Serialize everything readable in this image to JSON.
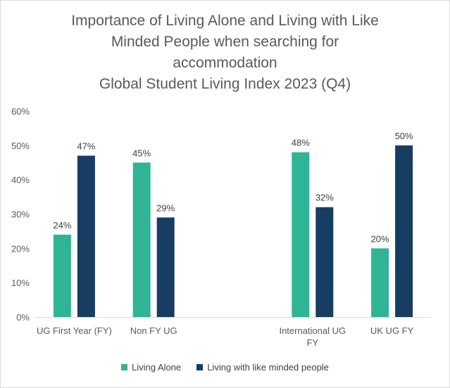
{
  "chart_data": {
    "type": "bar",
    "title_lines": [
      "Importance of Living Alone and Living with Like",
      "Minded People when searching for",
      "accommodation",
      "Global Student Living Index 2023 (Q4)"
    ],
    "categories": [
      {
        "label_lines": [
          "UG First Year (FY)"
        ],
        "slot": 0
      },
      {
        "label_lines": [
          "Non FY UG"
        ],
        "slot": 1
      },
      {
        "label_lines": [
          "International UG",
          "FY"
        ],
        "slot": 3
      },
      {
        "label_lines": [
          "UK UG FY"
        ],
        "slot": 4
      }
    ],
    "series": [
      {
        "name": "Living Alone",
        "color": "#2fb596",
        "values": [
          24,
          45,
          48,
          20
        ]
      },
      {
        "name": "Living with like minded people",
        "color": "#173d63",
        "values": [
          47,
          29,
          32,
          50
        ]
      }
    ],
    "data_labels": [
      [
        "24%",
        "45%",
        "48%",
        "20%"
      ],
      [
        "47%",
        "29%",
        "32%",
        "50%"
      ]
    ],
    "y_ticks": [
      0,
      10,
      20,
      30,
      40,
      50,
      60
    ],
    "y_tick_labels": [
      "0%",
      "10%",
      "20%",
      "30%",
      "40%",
      "50%",
      "60%"
    ],
    "ylim": [
      0,
      60
    ],
    "grid": false,
    "legend_position": "bottom"
  }
}
